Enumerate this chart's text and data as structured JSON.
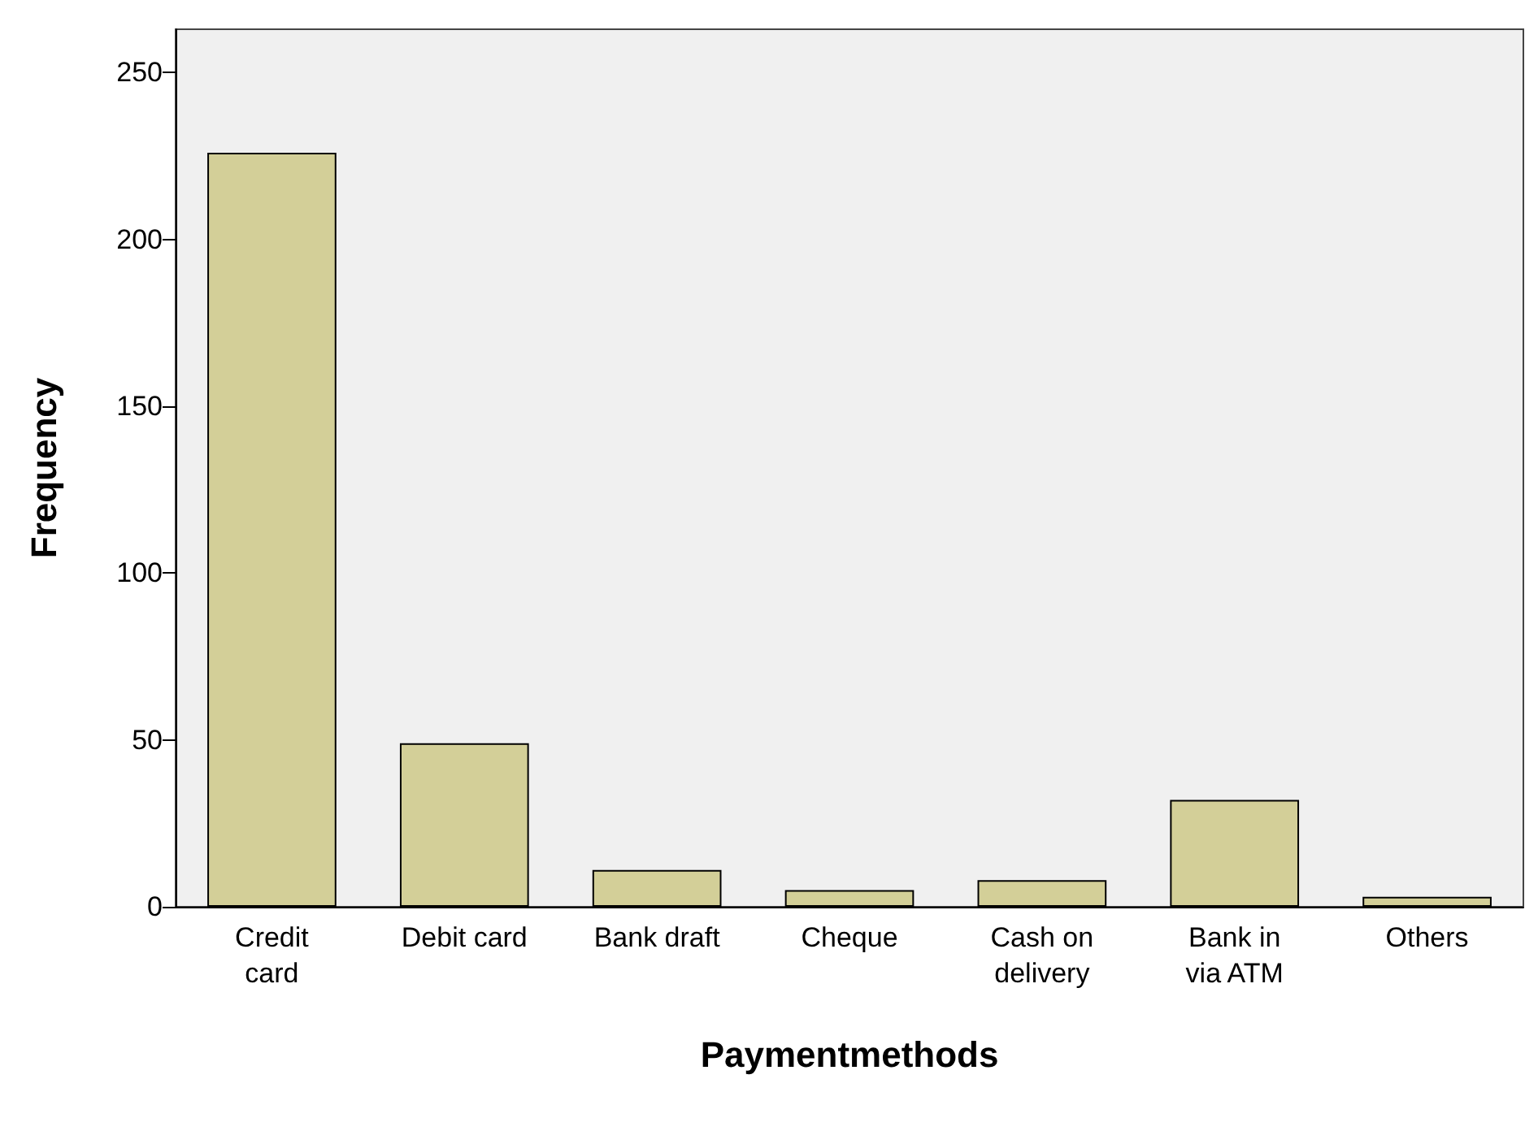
{
  "chart_data": {
    "type": "bar",
    "xlabel": "Paymentmethods",
    "ylabel": "Frequency",
    "categories": [
      "Credit\ncard",
      "Debit card",
      "Bank draft",
      "Cheque",
      "Cash on\ndelivery",
      "Bank in\nvia ATM",
      "Others"
    ],
    "values": [
      226,
      49,
      11,
      5,
      8,
      32,
      3
    ],
    "color": "#d3cf98",
    "ylim": [
      0,
      263
    ],
    "yticks": [
      0,
      50,
      100,
      150,
      200,
      250
    ],
    "grid": false
  }
}
